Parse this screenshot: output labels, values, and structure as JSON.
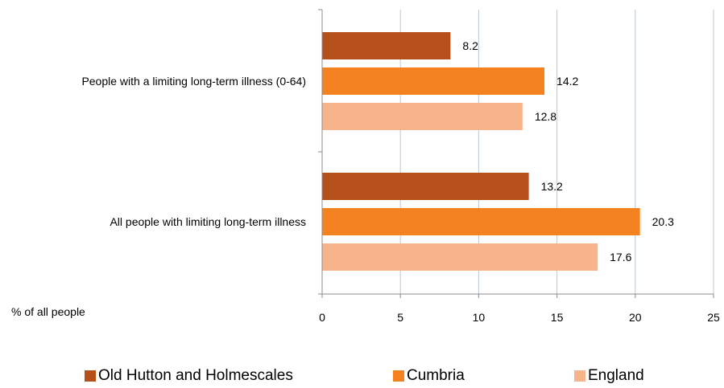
{
  "chart_data": {
    "type": "bar",
    "orientation": "horizontal",
    "categories": [
      "People with a limiting long-term illness (0-64)",
      "All people  with limiting long-term illness"
    ],
    "series": [
      {
        "name": "Old Hutton and Holmescales",
        "color": "#b5501a",
        "values": [
          8.2,
          13.2
        ]
      },
      {
        "name": "Cumbria",
        "color": "#f58220",
        "values": [
          14.2,
          20.3
        ]
      },
      {
        "name": "England",
        "color": "#f7b48a",
        "values": [
          12.8,
          17.6
        ]
      }
    ],
    "xlabel": "% of all people",
    "xlim": [
      0,
      25
    ],
    "xticks": [
      0,
      5,
      10,
      15,
      20,
      25
    ],
    "grid": true,
    "legend": "bottom"
  }
}
